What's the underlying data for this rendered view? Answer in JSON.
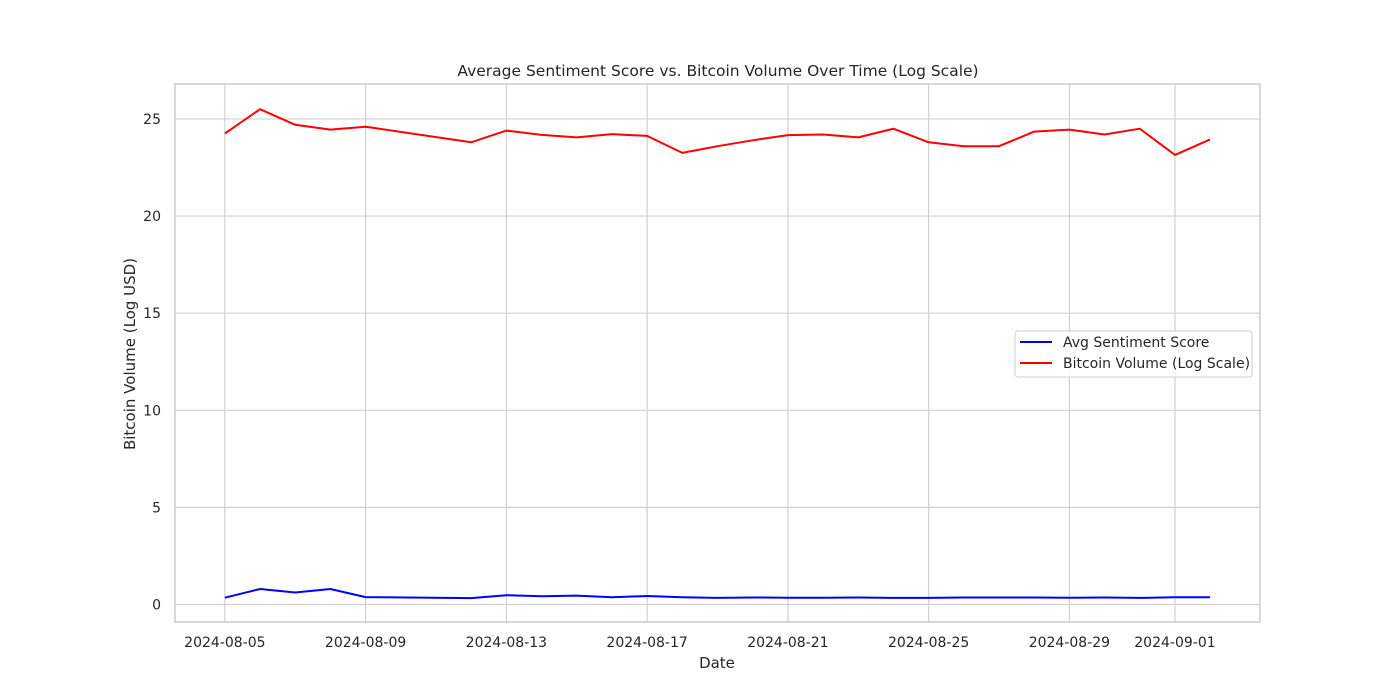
{
  "chart_data": {
    "type": "line",
    "title": "Average Sentiment Score vs. Bitcoin Volume Over Time (Log Scale)",
    "xlabel": "Date",
    "ylabel": "Bitcoin Volume (Log USD)",
    "xlim": [
      "2024-08-03T14:00",
      "2024-09-03T10:00"
    ],
    "ylim": [
      -0.9,
      26.8
    ],
    "grid": true,
    "legend_position": "center-right",
    "x_ticks": [
      "2024-08-05",
      "2024-08-09",
      "2024-08-13",
      "2024-08-17",
      "2024-08-21",
      "2024-08-25",
      "2024-08-29",
      "2024-09-01"
    ],
    "y_ticks": [
      0,
      5,
      10,
      15,
      20,
      25
    ],
    "x": [
      "2024-08-05",
      "2024-08-06",
      "2024-08-07",
      "2024-08-08",
      "2024-08-09",
      "2024-08-12",
      "2024-08-13",
      "2024-08-14",
      "2024-08-15",
      "2024-08-16",
      "2024-08-17",
      "2024-08-18",
      "2024-08-19",
      "2024-08-20",
      "2024-08-21",
      "2024-08-22",
      "2024-08-23",
      "2024-08-24",
      "2024-08-25",
      "2024-08-26",
      "2024-08-27",
      "2024-08-28",
      "2024-08-29",
      "2024-08-30",
      "2024-08-31",
      "2024-09-01",
      "2024-09-02"
    ],
    "series": [
      {
        "name": "Avg Sentiment Score",
        "color": "#0000ff",
        "values": [
          0.35,
          0.8,
          0.62,
          0.8,
          0.38,
          0.33,
          0.48,
          0.43,
          0.46,
          0.37,
          0.44,
          0.37,
          0.34,
          0.36,
          0.35,
          0.35,
          0.36,
          0.34,
          0.34,
          0.36,
          0.36,
          0.36,
          0.35,
          0.36,
          0.34,
          0.37,
          0.37
        ]
      },
      {
        "name": "Bitcoin Volume (Log Scale)",
        "color": "#ff0000",
        "values": [
          24.25,
          25.5,
          24.7,
          24.45,
          24.6,
          23.8,
          24.4,
          24.18,
          24.05,
          24.22,
          24.13,
          23.25,
          23.6,
          23.9,
          24.17,
          24.2,
          24.05,
          24.5,
          23.8,
          23.6,
          23.6,
          24.35,
          24.45,
          24.2,
          24.5,
          23.15,
          23.95
        ]
      }
    ]
  }
}
